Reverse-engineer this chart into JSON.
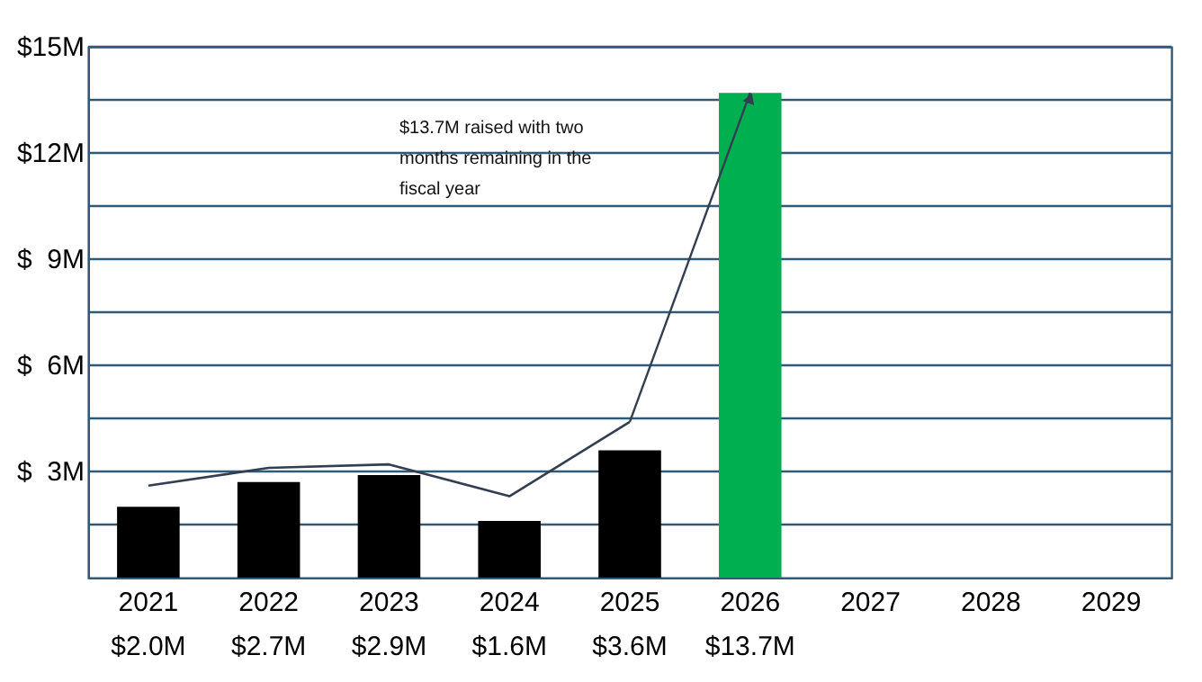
{
  "chart_data": {
    "type": "bar",
    "categories": [
      "2021",
      "2022",
      "2023",
      "2024",
      "2025",
      "2026",
      "2027",
      "2028",
      "2029"
    ],
    "series": [
      {
        "colors": [
          "#000000",
          "#000000",
          "#000000",
          "#000000",
          "#000000",
          "#00b050",
          null,
          null,
          null
        ],
        "values": [
          2.0,
          2.7,
          2.9,
          1.6,
          3.6,
          13.7,
          null,
          null,
          null
        ],
        "value_labels": [
          "$2.0M",
          "$2.7M",
          "$2.9M",
          "$1.6M",
          "$3.6M",
          "$13.7M",
          null,
          null,
          null
        ]
      },
      {
        "type": "line",
        "color": "#333f50",
        "values": [
          2.6,
          3.1,
          3.2,
          2.3,
          4.4,
          null,
          null,
          null,
          null
        ]
      }
    ],
    "ylim": [
      0,
      15
    ],
    "yticks": [
      {
        "value": 1.5,
        "label": null
      },
      {
        "value": 3,
        "label": "$  3M"
      },
      {
        "value": 4.5,
        "label": null
      },
      {
        "value": 6,
        "label": "$  6M"
      },
      {
        "value": 7.5,
        "label": null
      },
      {
        "value": 9,
        "label": "$  9M"
      },
      {
        "value": 10.5,
        "label": null
      },
      {
        "value": 12,
        "label": "$12M"
      },
      {
        "value": 13.5,
        "label": null
      },
      {
        "value": 15,
        "label": "$15M"
      }
    ],
    "grid": "y",
    "annotations": [
      "$13.7M raised with two months remaining in the fiscal year"
    ]
  }
}
